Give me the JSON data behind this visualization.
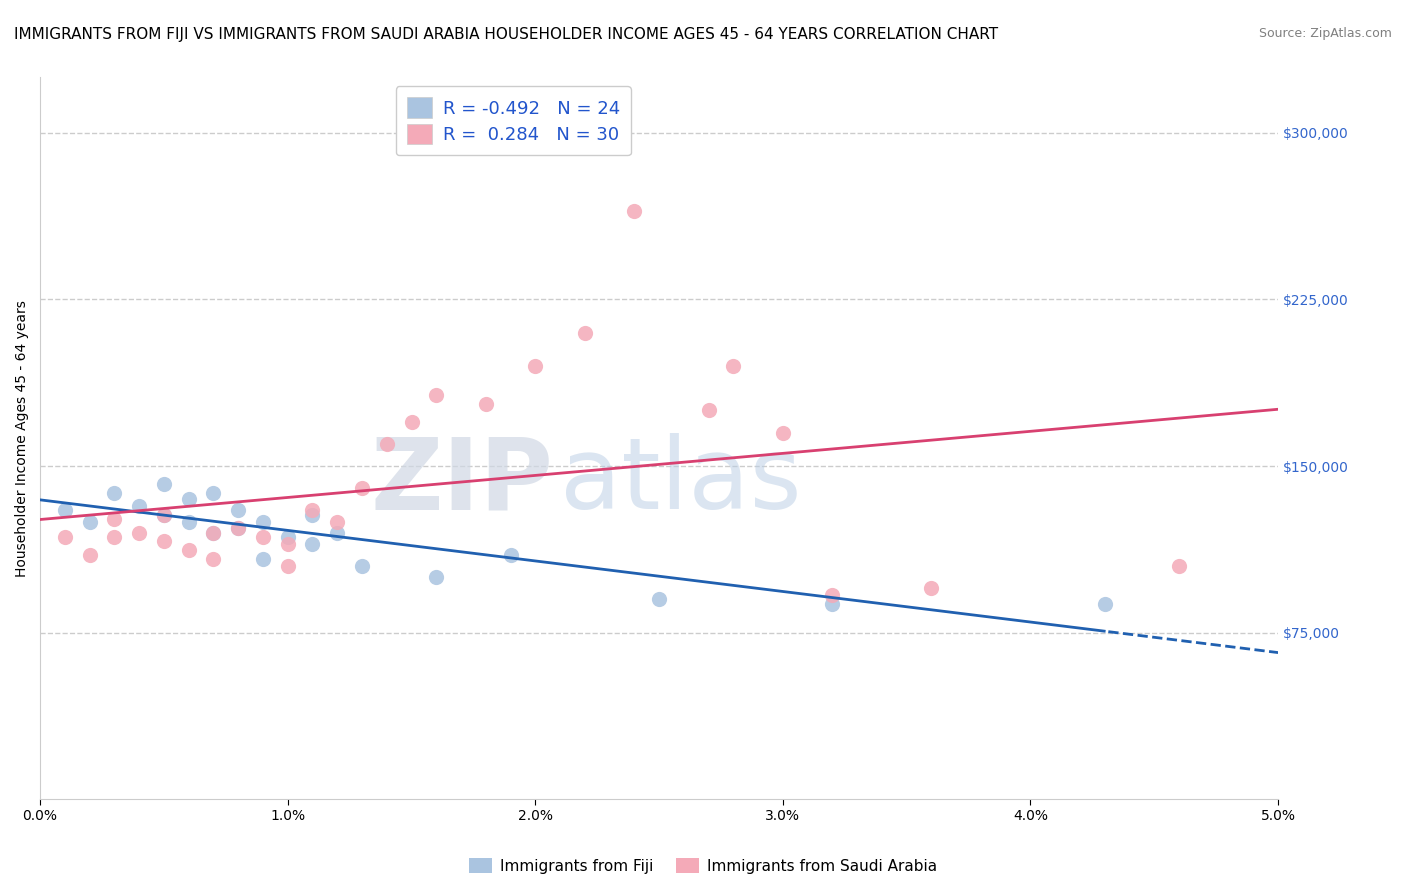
{
  "title": "IMMIGRANTS FROM FIJI VS IMMIGRANTS FROM SAUDI ARABIA HOUSEHOLDER INCOME AGES 45 - 64 YEARS CORRELATION CHART",
  "source": "Source: ZipAtlas.com",
  "ylabel": "Householder Income Ages 45 - 64 years",
  "fiji_label": "Immigrants from Fiji",
  "saudi_label": "Immigrants from Saudi Arabia",
  "fiji_R": -0.492,
  "fiji_N": 24,
  "saudi_R": 0.284,
  "saudi_N": 30,
  "fiji_color": "#aac4e0",
  "saudi_color": "#f4aab8",
  "fiji_line_color": "#2060b0",
  "saudi_line_color": "#d84070",
  "xlim": [
    0.0,
    0.05
  ],
  "ylim": [
    0,
    325000
  ],
  "yticks": [
    75000,
    150000,
    225000,
    300000
  ],
  "ytick_labels": [
    "$75,000",
    "$150,000",
    "$225,000",
    "$300,000"
  ],
  "xticks": [
    0.0,
    0.01,
    0.02,
    0.03,
    0.04,
    0.05
  ],
  "xtick_labels": [
    "0.0%",
    "1.0%",
    "2.0%",
    "3.0%",
    "4.0%",
    "5.0%"
  ],
  "fiji_x": [
    0.001,
    0.002,
    0.003,
    0.004,
    0.005,
    0.005,
    0.006,
    0.006,
    0.007,
    0.007,
    0.008,
    0.008,
    0.009,
    0.009,
    0.01,
    0.011,
    0.011,
    0.012,
    0.013,
    0.016,
    0.019,
    0.025,
    0.032,
    0.043
  ],
  "fiji_y": [
    130000,
    125000,
    138000,
    132000,
    142000,
    128000,
    135000,
    125000,
    138000,
    120000,
    130000,
    122000,
    125000,
    108000,
    118000,
    128000,
    115000,
    120000,
    105000,
    100000,
    110000,
    90000,
    88000,
    88000
  ],
  "saudi_x": [
    0.001,
    0.002,
    0.003,
    0.003,
    0.004,
    0.005,
    0.005,
    0.006,
    0.007,
    0.007,
    0.008,
    0.009,
    0.01,
    0.01,
    0.011,
    0.012,
    0.013,
    0.014,
    0.015,
    0.016,
    0.018,
    0.02,
    0.022,
    0.024,
    0.027,
    0.028,
    0.03,
    0.032,
    0.036,
    0.046
  ],
  "saudi_y": [
    118000,
    110000,
    118000,
    126000,
    120000,
    116000,
    128000,
    112000,
    120000,
    108000,
    122000,
    118000,
    105000,
    115000,
    130000,
    125000,
    140000,
    160000,
    170000,
    182000,
    178000,
    195000,
    210000,
    265000,
    175000,
    195000,
    165000,
    92000,
    95000,
    105000
  ],
  "watermark_zip": "ZIP",
  "watermark_atlas": "atlas",
  "background_color": "#ffffff",
  "grid_color": "#cccccc",
  "title_fontsize": 11,
  "label_fontsize": 10,
  "tick_fontsize": 10,
  "legend_fontsize": 13,
  "source_fontsize": 9
}
